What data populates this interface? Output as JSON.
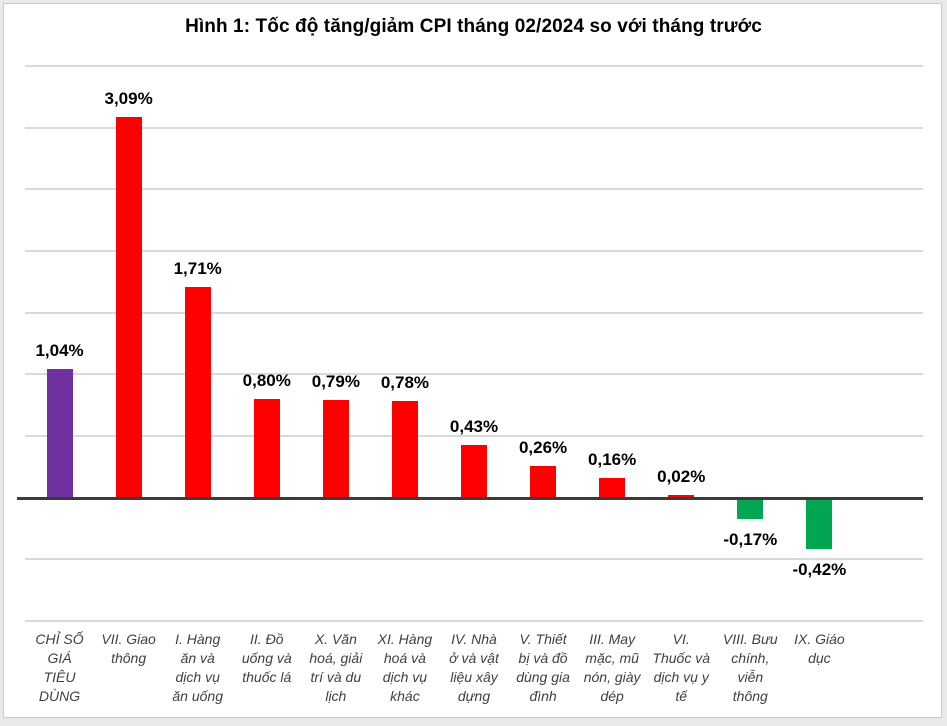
{
  "page": {
    "title": "Hình 1: Tốc độ tăng/giảm CPI tháng 02/2024 so với tháng trước"
  },
  "chart_data": {
    "type": "bar",
    "title": "Hình 1: Tốc độ tăng/giảm CPI tháng 02/2024 so với tháng trước",
    "categories": [
      "CHỈ SỐ GIÁ TIÊU DÙNG",
      "VII. Giao thông",
      "I. Hàng ăn và dịch vụ ăn uống",
      "II. Đồ uống và thuốc lá",
      "X. Văn hoá, giải trí và du lịch",
      "XI. Hàng hoá và dịch vụ khác",
      "IV. Nhà ở và vật liệu xây dựng",
      "V. Thiết bị và đồ dùng gia đình",
      "III. May mặc, mũ nón, giày dép",
      "VI. Thuốc và dịch vụ y tế",
      "VIII. Bưu chính, viễn thông",
      "IX. Giáo dục"
    ],
    "category_lines": [
      [
        "CHỈ SỐ",
        "GIÁ",
        "TIÊU",
        "DÙNG"
      ],
      [
        "VII. Giao",
        "thông"
      ],
      [
        "I. Hàng",
        "ăn và",
        "dịch vụ",
        "ăn uống"
      ],
      [
        "II. Đồ",
        "uống và",
        "thuốc lá"
      ],
      [
        "X. Văn",
        "hoá, giải",
        "trí và du",
        "lịch"
      ],
      [
        "XI. Hàng",
        "hoá và",
        "dịch vụ",
        "khác"
      ],
      [
        "IV. Nhà",
        "ở và vật",
        "liệu xây",
        "dựng"
      ],
      [
        "V. Thiết",
        "bị và đồ",
        "dùng gia",
        "đình"
      ],
      [
        "III. May",
        "mặc, mũ",
        "nón, giày",
        "dép"
      ],
      [
        "VI.",
        "Thuốc và",
        "dịch vụ y",
        "tế"
      ],
      [
        "VIII. Bưu",
        "chính,",
        "viễn",
        "thông"
      ],
      [
        "IX. Giáo",
        "dục"
      ]
    ],
    "values": [
      1.04,
      3.09,
      1.71,
      0.8,
      0.79,
      0.78,
      0.43,
      0.26,
      0.16,
      0.02,
      -0.17,
      -0.42
    ],
    "value_labels": [
      "1,04%",
      "3,09%",
      "1,71%",
      "0,80%",
      "0,79%",
      "0,78%",
      "0,43%",
      "0,26%",
      "0,16%",
      "0,02%",
      "-0,17%",
      "-0,42%"
    ],
    "unit": "%",
    "ylim": [
      -1.0,
      3.5
    ],
    "grid_step": 0.5,
    "grid": true,
    "legend": "none",
    "y_axis_tick_labels_visible": false,
    "xlabel": "",
    "ylabel": ""
  },
  "colors": {
    "bar_colors": [
      "#7030A0",
      "#FF0000",
      "#FF0000",
      "#FF0000",
      "#FF0000",
      "#FF0000",
      "#FF0000",
      "#FF0000",
      "#FF0000",
      "#FF0000",
      "#00A651",
      "#00A651"
    ],
    "bar_total": "#7030A0",
    "bar_increase": "#FF0000",
    "bar_decrease": "#00A651",
    "gridline": "#D9D9D9",
    "zero_line": "#3B3B3B",
    "title_text": "#000000",
    "value_label_text": "#000000",
    "category_text": "#404040",
    "frame_border": "#C9C9C9",
    "page_background": "#E9E9E9",
    "chart_background": "#FFFFFF"
  }
}
